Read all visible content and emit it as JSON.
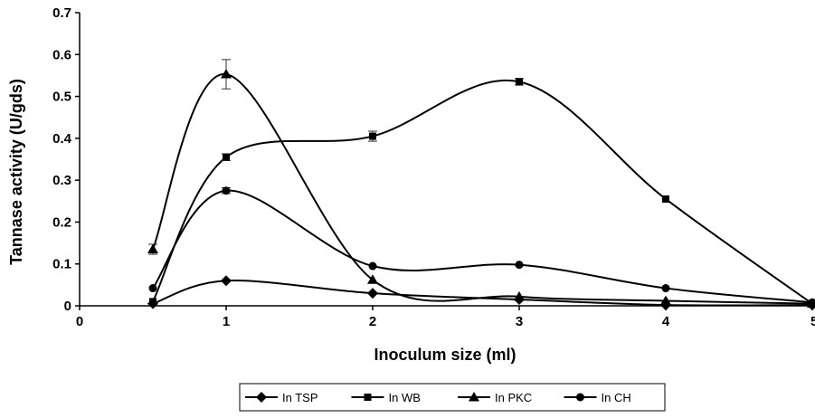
{
  "chart_data": {
    "type": "line",
    "title": "",
    "xlabel": "Inoculum size (ml)",
    "ylabel": "Tannase activity (U/gds)",
    "xlim": [
      0,
      5
    ],
    "ylim": [
      0,
      0.7
    ],
    "xticks": [
      "0",
      "1",
      "2",
      "3",
      "4",
      "5"
    ],
    "yticks": [
      "0",
      "0.1",
      "0.2",
      "0.3",
      "0.4",
      "0.5",
      "0.6",
      "0.7"
    ],
    "grid": false,
    "legend_position": "bottom",
    "series": [
      {
        "name": "In TSP",
        "marker": "diamond",
        "color": "#000000",
        "x": [
          0.5,
          1,
          2,
          3,
          4,
          5
        ],
        "y": [
          0.005,
          0.06,
          0.03,
          0.015,
          0.002,
          0.002
        ],
        "err": [
          0,
          0,
          0,
          0,
          0,
          0
        ]
      },
      {
        "name": "In WB",
        "marker": "square",
        "color": "#000000",
        "x": [
          0.5,
          1,
          2,
          3,
          4,
          5
        ],
        "y": [
          0.01,
          0.355,
          0.405,
          0.535,
          0.255,
          0.005
        ],
        "err": [
          0,
          0.008,
          0.012,
          0.008,
          0,
          0
        ]
      },
      {
        "name": "In PKC",
        "marker": "triangle",
        "color": "#000000",
        "x": [
          0.5,
          1,
          2,
          3,
          4,
          5
        ],
        "y": [
          0.135,
          0.553,
          0.062,
          0.022,
          0.012,
          0.005
        ],
        "err": [
          0.012,
          0.035,
          0,
          0,
          0,
          0
        ]
      },
      {
        "name": "In CH",
        "marker": "circle",
        "color": "#000000",
        "x": [
          0.5,
          1,
          2,
          3,
          4,
          5
        ],
        "y": [
          0.042,
          0.275,
          0.095,
          0.098,
          0.042,
          0.008
        ],
        "err": [
          0,
          0.007,
          0,
          0,
          0,
          0
        ]
      }
    ]
  }
}
